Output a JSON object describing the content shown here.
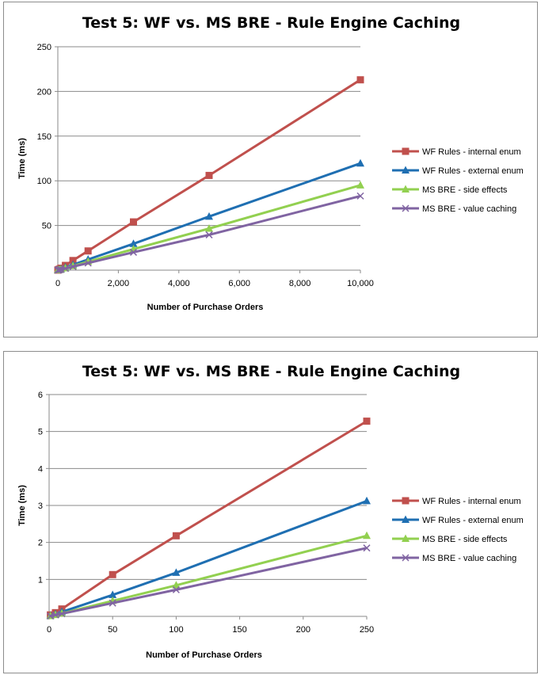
{
  "chart_data": [
    {
      "type": "line",
      "title": "Test 5: WF vs. MS BRE - Rule Engine Caching",
      "xlabel": "Number of Purchase Orders",
      "ylabel": "Time (ms)",
      "xlim": [
        0,
        10000
      ],
      "ylim": [
        0,
        250
      ],
      "xticks": [
        0,
        2000,
        4000,
        6000,
        8000,
        10000
      ],
      "xtick_labels": [
        "0",
        "2,000",
        "4,000",
        "6,000",
        "8,000",
        "10,000"
      ],
      "yticks": [
        50,
        100,
        150,
        200,
        250
      ],
      "ytick_labels": [
        "50",
        "100",
        "150",
        "200",
        "250"
      ],
      "grid": "horizontal",
      "legend_position": "right",
      "series": [
        {
          "name": "WF Rules - internal enum",
          "color": "#c0504d",
          "marker": "square",
          "x": [
            1,
            10,
            50,
            100,
            250,
            500,
            1000,
            2500,
            5000,
            10000
          ],
          "y": [
            0.1,
            0.3,
            1.1,
            2.2,
            5.3,
            10.8,
            21.5,
            54,
            106,
            213
          ]
        },
        {
          "name": "WF Rules - external enum",
          "color": "#1f6fb2",
          "marker": "triangle",
          "x": [
            1,
            10,
            50,
            100,
            250,
            500,
            1000,
            2500,
            5000,
            10000
          ],
          "y": [
            0.1,
            0.2,
            0.6,
            1.2,
            3.1,
            6,
            12,
            29.5,
            60,
            119.5
          ]
        },
        {
          "name": "MS BRE - side effects",
          "color": "#92d050",
          "marker": "triangle",
          "x": [
            1,
            10,
            50,
            100,
            250,
            500,
            1000,
            2500,
            5000,
            10000
          ],
          "y": [
            0.1,
            0.1,
            0.4,
            0.8,
            2.2,
            4.7,
            9.5,
            23.5,
            46.5,
            95
          ]
        },
        {
          "name": "MS BRE - value caching",
          "color": "#8064a2",
          "marker": "x",
          "x": [
            1,
            10,
            50,
            100,
            250,
            500,
            1000,
            2500,
            5000,
            10000
          ],
          "y": [
            0.1,
            0.1,
            0.4,
            0.7,
            1.9,
            4,
            8,
            20,
            39.5,
            83
          ]
        }
      ]
    },
    {
      "type": "line",
      "title": "Test 5: WF vs. MS BRE - Rule Engine Caching",
      "xlabel": "Number of Purchase Orders",
      "ylabel": "Time (ms)",
      "xlim": [
        0,
        250
      ],
      "ylim": [
        0,
        6
      ],
      "xticks": [
        0,
        50,
        100,
        150,
        200,
        250
      ],
      "xtick_labels": [
        "0",
        "50",
        "100",
        "150",
        "200",
        "250"
      ],
      "yticks": [
        1,
        2,
        3,
        4,
        5,
        6
      ],
      "ytick_labels": [
        "1",
        "2",
        "3",
        "4",
        "5",
        "6"
      ],
      "grid": "horizontal",
      "legend_position": "right",
      "series": [
        {
          "name": "WF Rules - internal enum",
          "color": "#c0504d",
          "marker": "square",
          "x": [
            1,
            5,
            10,
            50,
            100,
            250
          ],
          "y": [
            0.04,
            0.1,
            0.2,
            1.13,
            2.18,
            5.28
          ]
        },
        {
          "name": "WF Rules - external enum",
          "color": "#1f6fb2",
          "marker": "triangle",
          "x": [
            1,
            5,
            10,
            50,
            100,
            250
          ],
          "y": [
            0.02,
            0.06,
            0.12,
            0.58,
            1.18,
            3.12
          ]
        },
        {
          "name": "MS BRE - side effects",
          "color": "#92d050",
          "marker": "triangle",
          "x": [
            1,
            5,
            10,
            50,
            100,
            250
          ],
          "y": [
            0.01,
            0.04,
            0.08,
            0.42,
            0.84,
            2.18
          ]
        },
        {
          "name": "MS BRE - value caching",
          "color": "#8064a2",
          "marker": "x",
          "x": [
            1,
            5,
            10,
            50,
            100,
            250
          ],
          "y": [
            0.01,
            0.04,
            0.07,
            0.36,
            0.72,
            1.85
          ]
        }
      ]
    }
  ]
}
